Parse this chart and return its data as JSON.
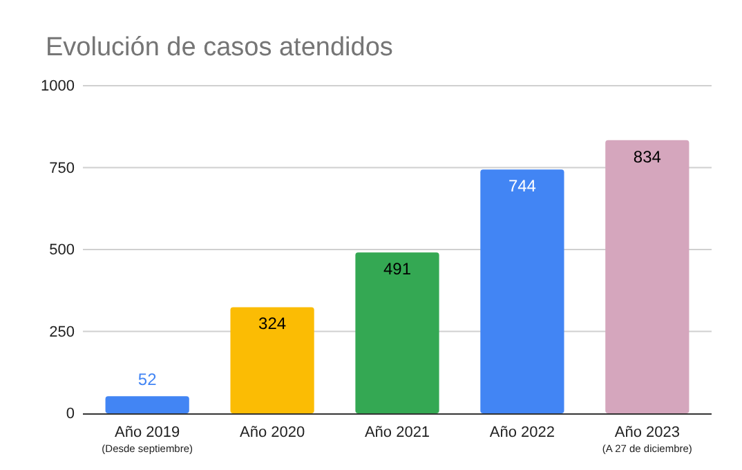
{
  "chart_data": {
    "type": "bar",
    "title": "Evolución de casos atendidos",
    "categories": [
      "Año 2019\n(Desde septiembre)",
      "Año 2020",
      "Año 2021",
      "Año 2022",
      "Año 2023\n(A 27 de diciembre)"
    ],
    "values": [
      52,
      324,
      491,
      744,
      834
    ],
    "colors": [
      "#4285f4",
      "#fbbc04",
      "#34a853",
      "#4285f4",
      "#d5a6bd"
    ],
    "ylim": [
      0,
      1000
    ],
    "yticks": [
      0,
      250,
      500,
      750,
      1000
    ],
    "grid": "y",
    "data_labels": true
  }
}
